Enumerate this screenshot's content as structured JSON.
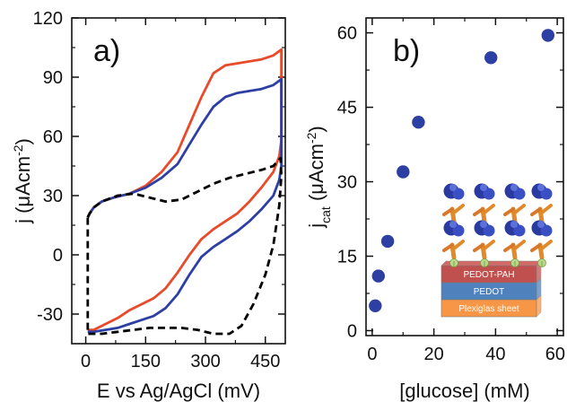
{
  "chart_data": [
    {
      "type": "line",
      "panel_label": "a)",
      "xlabel": "E  vs Ag/AgCl (mV)",
      "ylabel_main": "j (",
      "ylabel_mu": "μ",
      "ylabel_unit": "Acm",
      "ylabel_sup": "-2",
      "ylabel_close": ")",
      "xlim": [
        -35,
        500
      ],
      "ylim": [
        -45,
        120
      ],
      "xticks": [
        0,
        150,
        300,
        450
      ],
      "yticks": [
        -30,
        0,
        30,
        60,
        90,
        120
      ],
      "xtick_labels": [
        "0",
        "150",
        "300",
        "450"
      ],
      "ytick_labels": [
        "-30",
        "0",
        "30",
        "60",
        "90",
        "120"
      ],
      "series": [
        {
          "color": "#e84a2a",
          "dash": "solid",
          "x": [
            5,
            10,
            20,
            40,
            70,
            110,
            150,
            190,
            230,
            260,
            290,
            320,
            350,
            380,
            410,
            440,
            470,
            490,
            490,
            485,
            470,
            440,
            410,
            380,
            350,
            320,
            290,
            260,
            230,
            200,
            170,
            140,
            110,
            80,
            50,
            20,
            5
          ],
          "y": [
            19,
            21,
            24,
            27,
            29,
            31,
            35,
            42,
            52,
            66,
            80,
            92,
            96,
            97,
            98,
            99,
            101,
            104,
            58,
            50,
            42,
            34,
            27,
            21,
            17,
            13,
            8,
            0,
            -9,
            -17,
            -22,
            -25,
            -28,
            -32,
            -35,
            -38,
            -38
          ]
        },
        {
          "color": "#2e3fa3",
          "dash": "solid",
          "x": [
            5,
            10,
            20,
            40,
            70,
            110,
            150,
            190,
            230,
            260,
            290,
            320,
            350,
            380,
            410,
            440,
            470,
            490,
            490,
            485,
            470,
            440,
            410,
            380,
            350,
            320,
            290,
            260,
            230,
            200,
            170,
            140,
            110,
            80,
            50,
            20,
            5
          ],
          "y": [
            19,
            21,
            24,
            27,
            29,
            31,
            34,
            39,
            46,
            56,
            66,
            75,
            80,
            82,
            83,
            84,
            86,
            89,
            45,
            38,
            30,
            23,
            17,
            12,
            8,
            4,
            -1,
            -10,
            -20,
            -27,
            -31,
            -33,
            -35,
            -37,
            -38,
            -39,
            -39
          ]
        },
        {
          "color": "#000000",
          "dash": "dashed",
          "x": [
            5,
            10,
            20,
            40,
            80,
            120,
            160,
            200,
            240,
            280,
            320,
            360,
            400,
            440,
            470,
            488,
            490,
            485,
            470,
            450,
            420,
            390,
            360,
            320,
            280,
            240,
            200,
            160,
            120,
            80,
            40,
            20,
            5,
            5
          ],
          "y": [
            19,
            21,
            24,
            27,
            30,
            31,
            29,
            27,
            28,
            32,
            36,
            39,
            41,
            43,
            45,
            49,
            40,
            25,
            5,
            -10,
            -25,
            -36,
            -40,
            -40,
            -38,
            -37,
            -37,
            -37,
            -38,
            -39,
            -40,
            -40,
            -40,
            19
          ]
        }
      ]
    },
    {
      "type": "scatter",
      "panel_label": "b)",
      "xlabel": "[glucose] (mM)",
      "ylabel_main": "j",
      "ylabel_sub": "cat",
      "ylabel_mu": "μ",
      "ylabel_unit": "Acm",
      "ylabel_sup": "-2",
      "ylabel_close": ")",
      "xlim": [
        -2,
        62
      ],
      "ylim": [
        -1,
        63
      ],
      "xticks": [
        0,
        20,
        40,
        60
      ],
      "yticks": [
        0,
        15,
        30,
        45,
        60
      ],
      "xtick_labels": [
        "0",
        "20",
        "40",
        "60"
      ],
      "ytick_labels": [
        "0",
        "15",
        "30",
        "45",
        "60"
      ],
      "marker_color": "#2e3fa3",
      "x": [
        1,
        2,
        5,
        10,
        15,
        38.5,
        57
      ],
      "y": [
        5,
        11,
        18,
        32,
        42,
        55,
        59.5
      ],
      "inset_layers": [
        "PEDOT-PAH",
        "PEDOT",
        "Plexiglas sheet"
      ],
      "inset_layer_colors": [
        "#c0504d",
        "#4f81bd",
        "#f79646"
      ]
    }
  ]
}
